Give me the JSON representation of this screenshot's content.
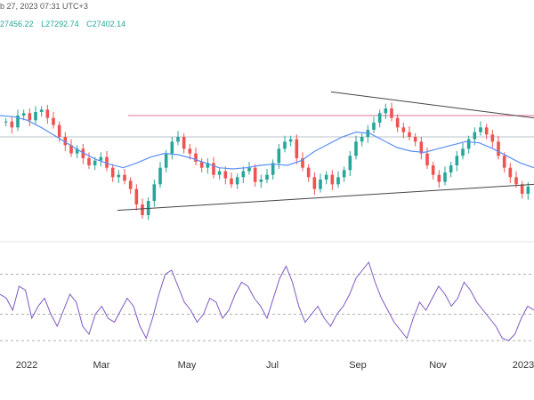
{
  "header": {
    "timestamp_text": "b 27, 2023 07:31 UTC+3"
  },
  "ohlc": {
    "values": [
      "27456.22",
      "L27292.74",
      "C27402.14"
    ]
  },
  "chart_data": [
    {
      "type": "candlestick",
      "title": "",
      "x_labels": [
        "2022",
        "Mar",
        "May",
        "Jul",
        "Sep",
        "Nov",
        "2023"
      ],
      "grid": false,
      "colors": {
        "up": "#26a69a",
        "down": "#ef5350",
        "ma": "#5b8ff9",
        "resistance": "#e57399",
        "support": "#bdc3c7",
        "trendline": "#444444"
      },
      "price_range": [
        -0.1,
        1.1
      ],
      "candles_close_path": [
        [
          0.75,
          0.7,
          0.8,
          0.82,
          0.76,
          0.83,
          0.85,
          0.78,
          0.72,
          0.62,
          0.55,
          0.48,
          0.52,
          0.44,
          0.38,
          0.42,
          0.45,
          0.36,
          0.28,
          0.3,
          0.25,
          0.18,
          0.05,
          -0.04,
          0.08,
          0.22,
          0.36,
          0.48,
          0.58,
          0.62,
          0.52,
          0.48,
          0.41,
          0.36,
          0.4,
          0.3,
          0.33,
          0.27,
          0.22,
          0.28,
          0.33,
          0.36,
          0.24,
          0.26,
          0.3,
          0.4,
          0.52,
          0.58,
          0.6,
          0.44,
          0.36,
          0.28,
          0.18,
          0.26,
          0.3,
          0.22,
          0.28,
          0.34,
          0.46,
          0.58,
          0.62,
          0.68,
          0.74,
          0.82,
          0.86,
          0.78,
          0.7,
          0.66,
          0.62,
          0.58,
          0.48,
          0.38,
          0.3,
          0.24,
          0.32,
          0.38,
          0.46,
          0.52,
          0.6,
          0.66,
          0.7,
          0.64,
          0.58,
          0.46,
          0.36,
          0.28,
          0.22,
          0.14,
          0.2
        ]
      ],
      "moving_average": [
        0.8,
        0.79,
        0.76,
        0.7,
        0.63,
        0.56,
        0.49,
        0.43,
        0.39,
        0.36,
        0.4,
        0.45,
        0.48,
        0.47,
        0.44,
        0.4,
        0.36,
        0.35,
        0.36,
        0.38,
        0.39,
        0.38,
        0.42,
        0.5,
        0.56,
        0.62,
        0.66,
        0.65,
        0.59,
        0.53,
        0.5,
        0.49,
        0.52,
        0.55,
        0.58,
        0.57,
        0.52,
        0.46,
        0.4,
        0.36
      ],
      "lines": {
        "resistance_level": 0.8,
        "support_level": 0.62,
        "upper_trendline": [
          [
            0.62,
            1.0
          ],
          [
            1.0,
            0.78
          ]
        ],
        "lower_trendline": [
          [
            0.22,
            0.0
          ],
          [
            1.0,
            0.22
          ]
        ]
      },
      "x_label_positions": [
        0.05,
        0.19,
        0.35,
        0.51,
        0.67,
        0.82,
        0.98
      ]
    },
    {
      "type": "line",
      "title": "",
      "series": [
        {
          "values": [
            0.6,
            0.55,
            0.4,
            0.7,
            0.65,
            0.3,
            0.45,
            0.55,
            0.35,
            0.2,
            0.4,
            0.6,
            0.5,
            0.2,
            0.1,
            0.35,
            0.45,
            0.3,
            0.25,
            0.4,
            0.55,
            0.45,
            0.2,
            0.05,
            0.3,
            0.6,
            0.85,
            0.9,
            0.7,
            0.5,
            0.4,
            0.25,
            0.35,
            0.55,
            0.5,
            0.3,
            0.4,
            0.6,
            0.75,
            0.7,
            0.55,
            0.45,
            0.3,
            0.55,
            0.8,
            0.95,
            0.75,
            0.45,
            0.25,
            0.35,
            0.45,
            0.3,
            0.2,
            0.35,
            0.45,
            0.6,
            0.8,
            0.9,
            1.0,
            0.75,
            0.55,
            0.4,
            0.25,
            0.15,
            0.05,
            0.3,
            0.5,
            0.4,
            0.55,
            0.7,
            0.6,
            0.45,
            0.55,
            0.75,
            0.65,
            0.5,
            0.4,
            0.3,
            0.2,
            0.05,
            0.02,
            0.1,
            0.3,
            0.45,
            0.4
          ]
        }
      ],
      "reference_levels": [
        0.85,
        0.35,
        0.02
      ],
      "colors": {
        "line": "#7e57c2",
        "reference": "#b0b0b0"
      }
    }
  ]
}
